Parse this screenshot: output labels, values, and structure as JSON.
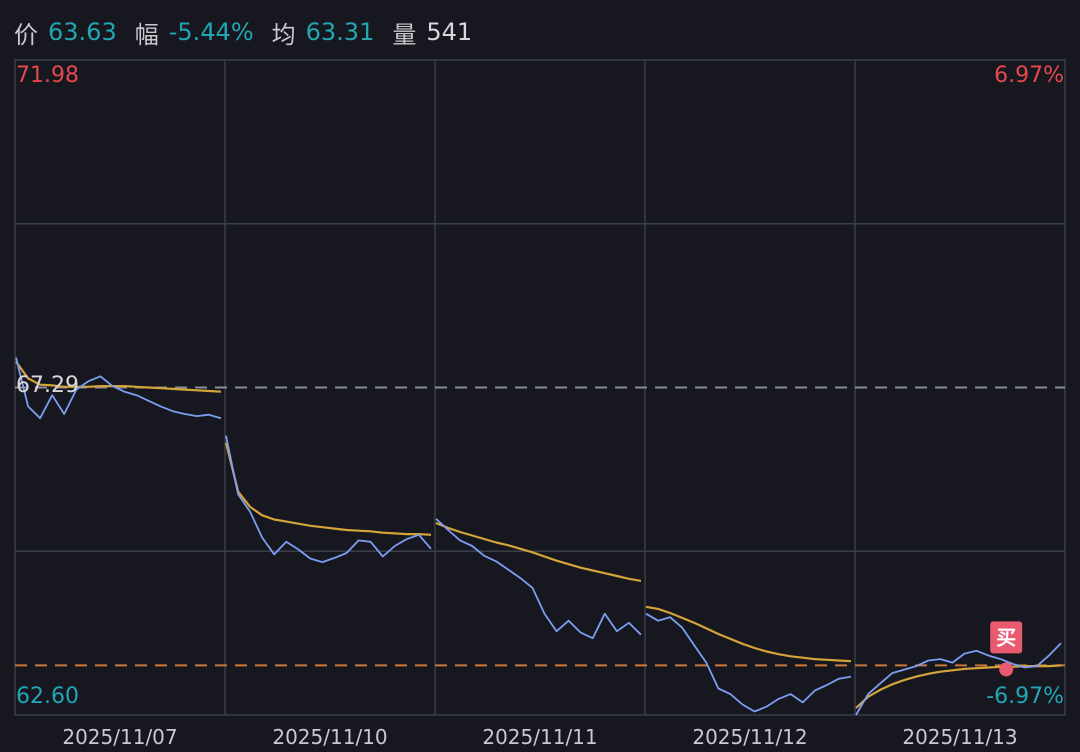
{
  "colors": {
    "background": "#16171f",
    "grid": "#3a3d4a",
    "up": "#e5484d",
    "down": "#22a6b3",
    "neutral": "#d7d7dc",
    "price_line": "#7c9ef2",
    "avg_line": "#d4a43a",
    "prev_close_line": "#8a8d99",
    "buy_line": "#c67a3e",
    "buy_marker": "#e85a6e"
  },
  "header": {
    "price_label": "价",
    "price_value": "63.63",
    "range_label": "幅",
    "range_value": "-5.44%",
    "avg_label": "均",
    "avg_value": "63.31",
    "volume_label": "量",
    "volume_value": "541"
  },
  "chart_data": {
    "type": "line",
    "x_labels": [
      "2025/11/07",
      "2025/11/10",
      "2025/11/11",
      "2025/11/12",
      "2025/11/13"
    ],
    "ylim": [
      62.6,
      71.98
    ],
    "y_axis_left": {
      "top": "71.98",
      "middle": "67.29",
      "bottom": "62.60"
    },
    "y_axis_right": {
      "top": "6.97%",
      "bottom": "-6.97%"
    },
    "prev_close": 67.29,
    "buy_price": 63.31,
    "buy_marker_label": "买",
    "series": [
      {
        "key": "price",
        "days": [
          [
            67.72,
            67.02,
            66.85,
            67.18,
            66.91,
            67.26,
            67.38,
            67.45,
            67.31,
            67.23,
            67.18,
            67.1,
            67.02,
            66.95,
            66.91,
            66.88,
            66.9,
            66.85
          ],
          [
            66.6,
            65.76,
            65.51,
            65.14,
            64.9,
            65.08,
            64.97,
            64.84,
            64.79,
            64.85,
            64.92,
            65.1,
            65.08,
            64.87,
            65.02,
            65.12,
            65.18,
            64.98
          ],
          [
            65.41,
            65.25,
            65.1,
            65.02,
            64.88,
            64.8,
            64.68,
            64.56,
            64.42,
            64.05,
            63.8,
            63.95,
            63.78,
            63.7,
            64.05,
            63.8,
            63.92,
            63.75
          ],
          [
            64.05,
            63.95,
            64.0,
            63.85,
            63.6,
            63.35,
            62.98,
            62.9,
            62.75,
            62.65,
            62.72,
            62.83,
            62.9,
            62.78,
            62.95,
            63.03,
            63.12,
            63.15
          ],
          [
            62.6,
            62.9,
            63.05,
            63.2,
            63.25,
            63.3,
            63.38,
            63.4,
            63.35,
            63.48,
            63.52,
            63.45,
            63.4,
            63.33,
            63.28,
            63.3,
            63.45,
            63.63
          ]
        ]
      },
      {
        "key": "avg",
        "days": [
          [
            67.66,
            67.42,
            67.33,
            67.32,
            67.3,
            67.3,
            67.3,
            67.31,
            67.31,
            67.31,
            67.3,
            67.29,
            67.28,
            67.27,
            67.26,
            67.25,
            67.24,
            67.23
          ],
          [
            66.5,
            65.8,
            65.58,
            65.46,
            65.4,
            65.37,
            65.34,
            65.31,
            65.29,
            65.27,
            65.25,
            65.24,
            65.23,
            65.21,
            65.2,
            65.19,
            65.19,
            65.18
          ],
          [
            65.35,
            65.28,
            65.22,
            65.17,
            65.12,
            65.07,
            65.03,
            64.98,
            64.93,
            64.87,
            64.81,
            64.76,
            64.71,
            64.67,
            64.63,
            64.59,
            64.55,
            64.52
          ],
          [
            64.15,
            64.12,
            64.06,
            63.99,
            63.92,
            63.84,
            63.76,
            63.69,
            63.62,
            63.56,
            63.51,
            63.47,
            63.44,
            63.42,
            63.4,
            63.39,
            63.38,
            63.37
          ],
          [
            62.7,
            62.86,
            62.96,
            63.04,
            63.1,
            63.15,
            63.19,
            63.22,
            63.24,
            63.26,
            63.27,
            63.28,
            63.29,
            63.29,
            63.3,
            63.3,
            63.3,
            63.31
          ]
        ]
      }
    ]
  }
}
